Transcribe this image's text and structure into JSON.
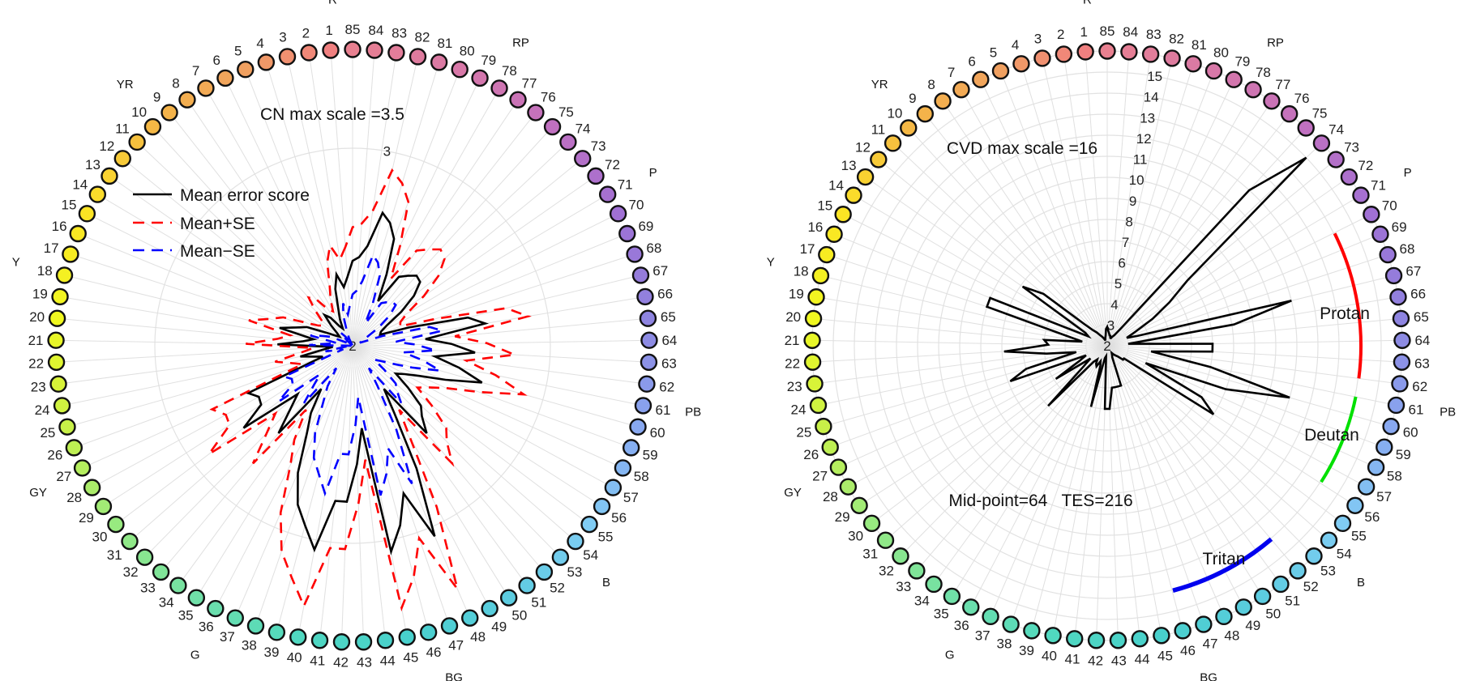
{
  "cap_numbers": [
    1,
    2,
    3,
    4,
    5,
    6,
    7,
    8,
    9,
    10,
    11,
    12,
    13,
    14,
    15,
    16,
    17,
    18,
    19,
    20,
    21,
    22,
    23,
    24,
    25,
    26,
    27,
    28,
    29,
    30,
    31,
    32,
    33,
    34,
    35,
    36,
    37,
    38,
    39,
    40,
    41,
    42,
    43,
    44,
    45,
    46,
    47,
    48,
    49,
    50,
    51,
    52,
    53,
    54,
    55,
    56,
    57,
    58,
    59,
    60,
    61,
    62,
    63,
    64,
    65,
    66,
    67,
    68,
    69,
    70,
    71,
    72,
    73,
    74,
    75,
    76,
    77,
    78,
    79,
    80,
    81,
    82,
    83,
    84,
    85
  ],
  "hue_labels": [
    "R",
    "YR",
    "Y",
    "GY",
    "G",
    "BG",
    "B",
    "PB",
    "P",
    "RP"
  ],
  "cap_color_stops": [
    "#f08080",
    "#f0a060",
    "#f5b845",
    "#fbe424",
    "#f0f820",
    "#c8f048",
    "#98ea80",
    "#70e0a8",
    "#50d8c0",
    "#48d0cc",
    "#5ccce0",
    "#80ccf4",
    "#88a8f0",
    "#8e84e0",
    "#a070d4",
    "#c070c0",
    "#d878a8",
    "#e88090"
  ],
  "chart_data": [
    {
      "type": "radar",
      "title": "CN max scale =3.5",
      "r_range": [
        2,
        3.5
      ],
      "grid_rings": [
        3
      ],
      "tick_labels": [
        "2",
        "3"
      ],
      "legend": [
        {
          "label": "Mean error score",
          "color": "#000000",
          "dashed": false
        },
        {
          "label": "Mean+SE",
          "color": "#ff0000",
          "dashed": true
        },
        {
          "label": "Mean−SE",
          "color": "#0000ff",
          "dashed": true
        }
      ],
      "legend_position": "upper-left",
      "series": [
        {
          "name": "Mean error score",
          "color": "#000000",
          "dashed": false,
          "values": [
            2.35,
            2.3,
            2.37,
            2.3,
            2.2,
            2.15,
            2.1,
            2.12,
            2.18,
            2.21,
            2.15,
            2.1,
            2.08,
            2.1,
            2.15,
            2.25,
            2.3,
            2.38,
            2.2,
            2.25,
            2.38,
            2.1,
            2.15,
            2.27,
            2.2,
            2.16,
            2.58,
            2.54,
            2.55,
            2.69,
            2.37,
            2.45,
            2.58,
            2.27,
            2.4,
            2.5,
            2.7,
            2.85,
            2.94,
            3.05,
            2.79,
            2.79,
            2.6,
            2.42,
            3.06,
            2.94,
            2.79,
            3.05,
            2.7,
            2.4,
            2.27,
            2.58,
            2.5,
            2.46,
            2.35,
            2.26,
            2.3,
            2.37,
            2.5,
            2.68,
            2.55,
            2.42,
            2.62,
            2.5,
            2.37,
            2.68,
            2.6,
            2.3,
            2.15,
            2.16,
            2.2,
            2.3,
            2.4,
            2.47,
            2.48,
            2.45,
            2.42,
            2.26,
            2.4,
            2.58,
            2.65,
            2.69,
            2.51,
            2.45,
            2.43
          ]
        },
        {
          "name": "Mean+SE",
          "color": "#ff0000",
          "dashed": true,
          "values": [
            2.5,
            2.44,
            2.52,
            2.44,
            2.32,
            2.26,
            2.2,
            2.22,
            2.3,
            2.33,
            2.26,
            2.2,
            2.18,
            2.2,
            2.26,
            2.38,
            2.44,
            2.54,
            2.32,
            2.38,
            2.54,
            2.2,
            2.26,
            2.4,
            2.32,
            2.27,
            2.78,
            2.73,
            2.74,
            2.91,
            2.52,
            2.62,
            2.78,
            2.4,
            2.56,
            2.68,
            2.92,
            3.1,
            3.21,
            3.34,
            3.03,
            3.03,
            2.8,
            2.58,
            3.35,
            3.21,
            3.03,
            3.34,
            2.92,
            2.56,
            2.4,
            2.78,
            2.68,
            2.63,
            2.5,
            2.39,
            2.44,
            2.52,
            2.68,
            2.9,
            2.74,
            2.58,
            2.82,
            2.68,
            2.52,
            2.9,
            2.8,
            2.44,
            2.26,
            2.27,
            2.32,
            2.44,
            2.56,
            2.64,
            2.66,
            2.62,
            2.58,
            2.39,
            2.56,
            2.78,
            2.86,
            2.91,
            2.69,
            2.62,
            2.6
          ]
        },
        {
          "name": "Mean−SE",
          "color": "#0000ff",
          "dashed": true,
          "values": [
            2.2,
            2.16,
            2.22,
            2.16,
            2.08,
            2.04,
            2.0,
            2.02,
            2.06,
            2.09,
            2.04,
            2.0,
            2.0,
            2.0,
            2.04,
            2.12,
            2.16,
            2.22,
            2.08,
            2.12,
            2.22,
            2.0,
            2.04,
            2.14,
            2.08,
            2.05,
            2.38,
            2.35,
            2.36,
            2.47,
            2.22,
            2.28,
            2.38,
            2.14,
            2.24,
            2.32,
            2.48,
            2.6,
            2.67,
            2.76,
            2.55,
            2.55,
            2.4,
            2.26,
            2.77,
            2.67,
            2.55,
            2.76,
            2.48,
            2.24,
            2.14,
            2.38,
            2.32,
            2.29,
            2.2,
            2.13,
            2.16,
            2.22,
            2.32,
            2.46,
            2.36,
            2.26,
            2.42,
            2.32,
            2.22,
            2.46,
            2.4,
            2.16,
            2.04,
            2.05,
            2.08,
            2.16,
            2.24,
            2.3,
            2.3,
            2.28,
            2.26,
            2.13,
            2.24,
            2.38,
            2.44,
            2.47,
            2.33,
            2.28,
            2.26
          ]
        }
      ]
    },
    {
      "type": "radar",
      "title": "CVD max scale =16",
      "r_range": [
        2,
        16
      ],
      "grid_rings": [
        3,
        4,
        5,
        6,
        7,
        8,
        9,
        10,
        11,
        12,
        13,
        14,
        15,
        16
      ],
      "tick_labels": [
        "2",
        "3",
        "4",
        "5",
        "6",
        "7",
        "8",
        "9",
        "10",
        "11",
        "12",
        "13",
        "14",
        "15"
      ],
      "annotation": "Mid-point=64   TES=216",
      "axis_labels": [
        {
          "label": "Protan",
          "color": "#ff0000"
        },
        {
          "label": "Deutan",
          "color": "#00e000"
        },
        {
          "label": "Tritan",
          "color": "#0000ee"
        }
      ],
      "series": [
        {
          "name": "CVD error score",
          "color": "#000000",
          "dashed": false,
          "values": [
            2.8,
            2.5,
            2.4,
            2.3,
            2.3,
            2.4,
            2.5,
            2.6,
            2.8,
            3.0,
            3.5,
            5.9,
            6.9,
            3.2,
            3.0,
            8.0,
            8.0,
            4.0,
            3.2,
            5.0,
            4.8,
            6.9,
            4.9,
            3.5,
            6.0,
            6.9,
            3.1,
            3.5,
            4.9,
            3.0,
            3.5,
            6.0,
            3.0,
            2.8,
            3.0,
            3.1,
            2.8,
            3.0,
            5.0,
            2.6,
            2.5,
            5.0,
            5.0,
            4.0,
            4.0,
            4.0,
            4.0,
            2.6,
            2.5,
            2.4,
            2.5,
            2.6,
            2.7,
            3.0,
            3.0,
            8.0,
            7.1,
            4.0,
            8.0,
            11.0,
            7.0,
            4.1,
            7.0,
            7.0,
            3.0,
            8.1,
            11.0,
            3.5,
            3.0,
            3.5,
            4.5,
            5.6,
            6.9,
            15.0,
            12.0,
            3.0,
            2.6,
            2.5,
            2.4,
            2.4,
            2.5,
            2.5,
            2.6,
            2.7,
            2.9
          ]
        }
      ]
    }
  ]
}
